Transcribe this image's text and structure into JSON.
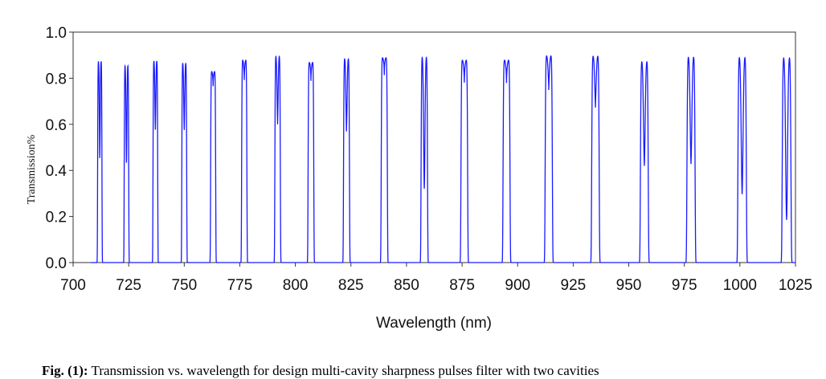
{
  "chart_data": {
    "type": "line",
    "xlabel": "Wavelength (nm)",
    "ylabel": "Transmission%",
    "xlim": [
      700,
      1025
    ],
    "ylim": [
      0,
      1
    ],
    "x_ticks": [
      700,
      725,
      750,
      775,
      800,
      825,
      850,
      875,
      900,
      925,
      950,
      975,
      1000,
      1025
    ],
    "y_ticks": [
      "0.0",
      "0.2",
      "0.4",
      "0.6",
      "0.8",
      "1.0"
    ],
    "grid": false,
    "line_color": "#1a1aff",
    "peaks": [
      {
        "center": 712,
        "peak": 0.88,
        "dip": 0.47
      },
      {
        "center": 724,
        "peak": 0.86,
        "dip": 0.45
      },
      {
        "center": 737,
        "peak": 0.88,
        "dip": 0.6
      },
      {
        "center": 750,
        "peak": 0.87,
        "dip": 0.6
      },
      {
        "center": 763,
        "peak": 0.83,
        "dip": 0.8
      },
      {
        "center": 777,
        "peak": 0.88,
        "dip": 0.83
      },
      {
        "center": 792,
        "peak": 0.9,
        "dip": 0.63
      },
      {
        "center": 807,
        "peak": 0.87,
        "dip": 0.83
      },
      {
        "center": 823,
        "peak": 0.89,
        "dip": 0.6
      },
      {
        "center": 840,
        "peak": 0.89,
        "dip": 0.86
      },
      {
        "center": 858,
        "peak": 0.9,
        "dip": 0.34
      },
      {
        "center": 876,
        "peak": 0.88,
        "dip": 0.83
      },
      {
        "center": 895,
        "peak": 0.88,
        "dip": 0.83
      },
      {
        "center": 914,
        "peak": 0.9,
        "dip": 0.8
      },
      {
        "center": 935,
        "peak": 0.9,
        "dip": 0.72
      },
      {
        "center": 957,
        "peak": 0.88,
        "dip": 0.45
      },
      {
        "center": 978,
        "peak": 0.9,
        "dip": 0.46
      },
      {
        "center": 1001,
        "peak": 0.9,
        "dip": 0.32
      },
      {
        "center": 1021,
        "peak": 0.9,
        "dip": 0.2
      }
    ]
  },
  "caption": {
    "label": "Fig. (1):",
    "text": " Transmission vs. wavelength for design multi-cavity sharpness pulses filter with two cavities"
  }
}
